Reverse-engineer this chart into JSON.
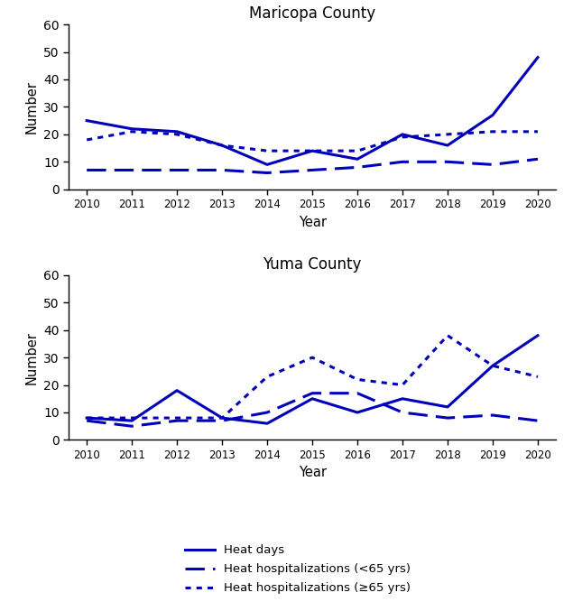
{
  "years": [
    2010,
    2011,
    2012,
    2013,
    2014,
    2015,
    2016,
    2017,
    2018,
    2019,
    2020
  ],
  "maricopa": {
    "heat_days": [
      25,
      22,
      21,
      16,
      9,
      14,
      11,
      20,
      16,
      27,
      48
    ],
    "hosp_lt65": [
      7,
      7,
      7,
      7,
      6,
      7,
      8,
      10,
      10,
      9,
      11
    ],
    "hosp_ge65": [
      18,
      21,
      20,
      16,
      14,
      14,
      14,
      19,
      20,
      21,
      21
    ]
  },
  "yuma": {
    "heat_days": [
      8,
      7,
      18,
      8,
      6,
      15,
      10,
      15,
      12,
      27,
      38
    ],
    "hosp_lt65": [
      7,
      5,
      7,
      7,
      10,
      17,
      17,
      10,
      8,
      9,
      7
    ],
    "hosp_ge65": [
      8,
      8,
      8,
      8,
      23,
      30,
      22,
      20,
      38,
      27,
      23
    ]
  },
  "title_maricopa": "Maricopa County",
  "title_yuma": "Yuma County",
  "xlabel": "Year",
  "ylabel": "Number",
  "ylim": [
    0,
    60
  ],
  "yticks": [
    0,
    10,
    20,
    30,
    40,
    50,
    60
  ],
  "line_color": "#0000BB",
  "legend_labels": [
    "Heat days",
    "Heat hospitalizations (<65 yrs)",
    "Heat hospitalizations (≥65 yrs)"
  ]
}
